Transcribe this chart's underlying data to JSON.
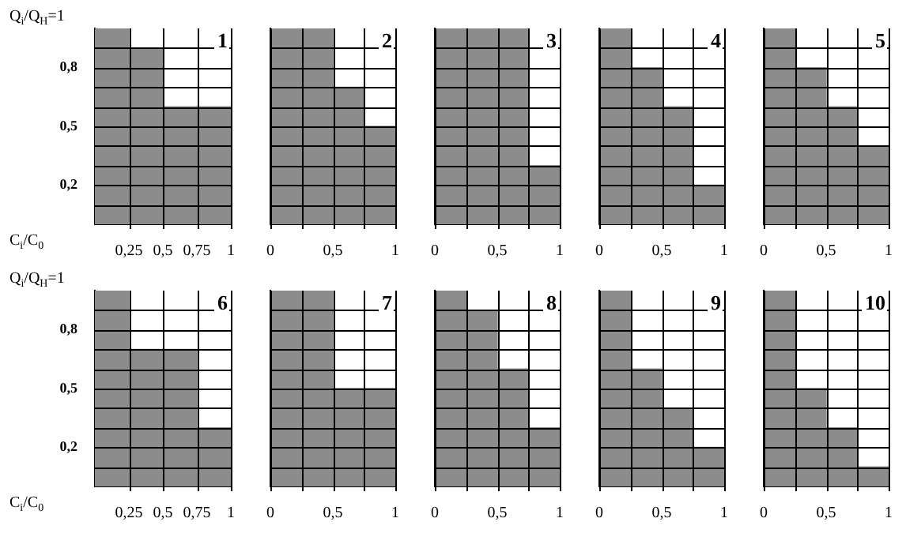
{
  "chart_data": [
    {
      "type": "histogram",
      "bins": [
        0,
        0.25,
        0.5,
        0.75,
        1
      ],
      "values": [
        1.0,
        0.9,
        0.6,
        0.6
      ],
      "color": "#8c8c8c",
      "xlabel": "C$_{i}$/C$_{0}$",
      "ylabel": "Q$_{i}$/Q$_{H}$=1",
      "annotations": [
        "1"
      ],
      "xlim": [
        0,
        1
      ],
      "ylim": [
        0,
        1
      ],
      "xticks": [
        {
          "value": 0.25,
          "label": "0,25"
        },
        {
          "value": 0.5,
          "label": "0,5"
        },
        {
          "value": 0.75,
          "label": "0,75"
        },
        {
          "value": 1,
          "label": "1"
        }
      ],
      "yticks": [
        {
          "value": 0.1,
          "label": null
        },
        {
          "value": 0.2,
          "label": "0,2"
        },
        {
          "value": 0.3,
          "label": null
        },
        {
          "value": 0.4,
          "label": null
        },
        {
          "value": 0.5,
          "label": "0,5"
        },
        {
          "value": 0.6,
          "label": null
        },
        {
          "value": 0.7,
          "label": null
        },
        {
          "value": 0.8,
          "label": "0,8"
        },
        {
          "value": 0.9,
          "label": null
        }
      ],
      "grid": true
    },
    {
      "type": "histogram",
      "bins": [
        0,
        0.25,
        0.5,
        0.75,
        1
      ],
      "values": [
        1.0,
        1.0,
        0.7,
        0.5
      ],
      "color": "#8c8c8c",
      "annotations": [
        "2"
      ],
      "xlim": [
        0,
        1
      ],
      "ylim": [
        0,
        1
      ],
      "xticks": [
        {
          "value": 0,
          "label": "0"
        },
        {
          "value": 0.25,
          "label": null
        },
        {
          "value": 0.5,
          "label": "0,5"
        },
        {
          "value": 0.75,
          "label": null
        },
        {
          "value": 1,
          "label": "1"
        }
      ],
      "yticks": [
        0.1,
        0.2,
        0.3,
        0.4,
        0.5,
        0.6,
        0.7,
        0.8,
        0.9
      ],
      "grid": true,
      "tick_labels": "x"
    },
    {
      "type": "histogram",
      "bins": [
        0,
        0.25,
        0.5,
        0.75,
        1
      ],
      "values": [
        1.0,
        1.0,
        1.0,
        0.3
      ],
      "color": "#8c8c8c",
      "annotations": [
        "3"
      ],
      "xlim": [
        0,
        1
      ],
      "ylim": [
        0,
        1
      ],
      "xticks": [
        {
          "value": 0,
          "label": "0"
        },
        {
          "value": 0.25,
          "label": null
        },
        {
          "value": 0.5,
          "label": "0,5"
        },
        {
          "value": 0.75,
          "label": null
        },
        {
          "value": 1,
          "label": "1"
        }
      ],
      "yticks": [
        0.1,
        0.2,
        0.3,
        0.4,
        0.5,
        0.6,
        0.7,
        0.8,
        0.9
      ],
      "grid": true,
      "tick_labels": "x"
    },
    {
      "type": "histogram",
      "bins": [
        0,
        0.25,
        0.5,
        0.75,
        1
      ],
      "values": [
        1.0,
        0.8,
        0.6,
        0.2
      ],
      "color": "#8c8c8c",
      "annotations": [
        "4"
      ],
      "xlim": [
        0,
        1
      ],
      "ylim": [
        0,
        1
      ],
      "xticks": [
        {
          "value": 0,
          "label": "0"
        },
        {
          "value": 0.25,
          "label": null
        },
        {
          "value": 0.5,
          "label": "0,5"
        },
        {
          "value": 0.75,
          "label": null
        },
        {
          "value": 1,
          "label": "1"
        }
      ],
      "yticks": [
        0.1,
        0.2,
        0.3,
        0.4,
        0.5,
        0.6,
        0.7,
        0.8,
        0.9
      ],
      "grid": true,
      "tick_labels": "x"
    },
    {
      "type": "histogram",
      "bins": [
        0,
        0.25,
        0.5,
        0.75,
        1
      ],
      "values": [
        1.0,
        0.8,
        0.6,
        0.4
      ],
      "color": "#8c8c8c",
      "annotations": [
        "5"
      ],
      "xlim": [
        0,
        1
      ],
      "ylim": [
        0,
        1
      ],
      "xticks": [
        {
          "value": 0,
          "label": "0"
        },
        {
          "value": 0.25,
          "label": null
        },
        {
          "value": 0.5,
          "label": "0,5"
        },
        {
          "value": 0.75,
          "label": null
        },
        {
          "value": 1,
          "label": "1"
        }
      ],
      "yticks": [
        0.1,
        0.2,
        0.3,
        0.4,
        0.5,
        0.6,
        0.7,
        0.8,
        0.9
      ],
      "grid": true,
      "tick_labels": "x"
    },
    {
      "type": "histogram",
      "bins": [
        0,
        0.25,
        0.5,
        0.75,
        1
      ],
      "values": [
        1.0,
        0.7,
        0.7,
        0.3
      ],
      "color": "#8c8c8c",
      "xlabel": "C$_{i}$/C$_{0}$",
      "ylabel": "Q$_{i}$/Q$_{H}$=1",
      "annotations": [
        "6"
      ],
      "xlim": [
        0,
        1
      ],
      "ylim": [
        0,
        1
      ],
      "xticks": [
        {
          "value": 0.25,
          "label": "0,25"
        },
        {
          "value": 0.5,
          "label": "0,5"
        },
        {
          "value": 0.75,
          "label": "0,75"
        },
        {
          "value": 1,
          "label": "1"
        }
      ],
      "yticks": [
        {
          "value": 0.1,
          "label": null
        },
        {
          "value": 0.2,
          "label": "0,2"
        },
        {
          "value": 0.3,
          "label": null
        },
        {
          "value": 0.4,
          "label": null
        },
        {
          "value": 0.5,
          "label": "0,5"
        },
        {
          "value": 0.6,
          "label": null
        },
        {
          "value": 0.7,
          "label": null
        },
        {
          "value": 0.8,
          "label": "0,8"
        },
        {
          "value": 0.9,
          "label": null
        }
      ],
      "grid": true
    },
    {
      "type": "histogram",
      "bins": [
        0,
        0.25,
        0.5,
        0.75,
        1
      ],
      "values": [
        1.0,
        1.0,
        0.5,
        0.5
      ],
      "color": "#8c8c8c",
      "annotations": [
        "7"
      ],
      "xlim": [
        0,
        1
      ],
      "ylim": [
        0,
        1
      ],
      "xticks": [
        {
          "value": 0,
          "label": "0"
        },
        {
          "value": 0.25,
          "label": null
        },
        {
          "value": 0.5,
          "label": "0,5"
        },
        {
          "value": 0.75,
          "label": null
        },
        {
          "value": 1,
          "label": "1"
        }
      ],
      "yticks": [
        0.1,
        0.2,
        0.3,
        0.4,
        0.5,
        0.6,
        0.7,
        0.8,
        0.9
      ],
      "grid": true,
      "tick_labels": "x"
    },
    {
      "type": "histogram",
      "bins": [
        0,
        0.25,
        0.5,
        0.75,
        1
      ],
      "values": [
        1.0,
        0.9,
        0.6,
        0.3
      ],
      "color": "#8c8c8c",
      "annotations": [
        "8"
      ],
      "xlim": [
        0,
        1
      ],
      "ylim": [
        0,
        1
      ],
      "xticks": [
        {
          "value": 0,
          "label": "0"
        },
        {
          "value": 0.25,
          "label": null
        },
        {
          "value": 0.5,
          "label": "0,5"
        },
        {
          "value": 0.75,
          "label": null
        },
        {
          "value": 1,
          "label": "1"
        }
      ],
      "yticks": [
        0.1,
        0.2,
        0.3,
        0.4,
        0.5,
        0.6,
        0.7,
        0.8,
        0.9
      ],
      "grid": true,
      "tick_labels": "x"
    },
    {
      "type": "histogram",
      "bins": [
        0,
        0.25,
        0.5,
        0.75,
        1
      ],
      "values": [
        1.0,
        0.6,
        0.4,
        0.2
      ],
      "color": "#8c8c8c",
      "annotations": [
        "9"
      ],
      "xlim": [
        0,
        1
      ],
      "ylim": [
        0,
        1
      ],
      "xticks": [
        {
          "value": 0,
          "label": "0"
        },
        {
          "value": 0.25,
          "label": null
        },
        {
          "value": 0.5,
          "label": "0,5"
        },
        {
          "value": 0.75,
          "label": null
        },
        {
          "value": 1,
          "label": "1"
        }
      ],
      "yticks": [
        0.1,
        0.2,
        0.3,
        0.4,
        0.5,
        0.6,
        0.7,
        0.8,
        0.9
      ],
      "grid": true,
      "tick_labels": "x"
    },
    {
      "type": "histogram",
      "bins": [
        0,
        0.25,
        0.5,
        0.75,
        1
      ],
      "values": [
        1.0,
        0.5,
        0.3,
        0.1
      ],
      "color": "#8c8c8c",
      "annotations": [
        "10"
      ],
      "xlim": [
        0,
        1
      ],
      "ylim": [
        0,
        1
      ],
      "xticks": [
        {
          "value": 0,
          "label": "0"
        },
        {
          "value": 0.25,
          "label": null
        },
        {
          "value": 0.5,
          "label": "0,5"
        },
        {
          "value": 0.75,
          "label": null
        },
        {
          "value": 1,
          "label": "1"
        }
      ],
      "yticks": [
        0.1,
        0.2,
        0.3,
        0.4,
        0.5,
        0.6,
        0.7,
        0.8,
        0.9
      ],
      "grid": true,
      "tick_labels": "x"
    }
  ]
}
